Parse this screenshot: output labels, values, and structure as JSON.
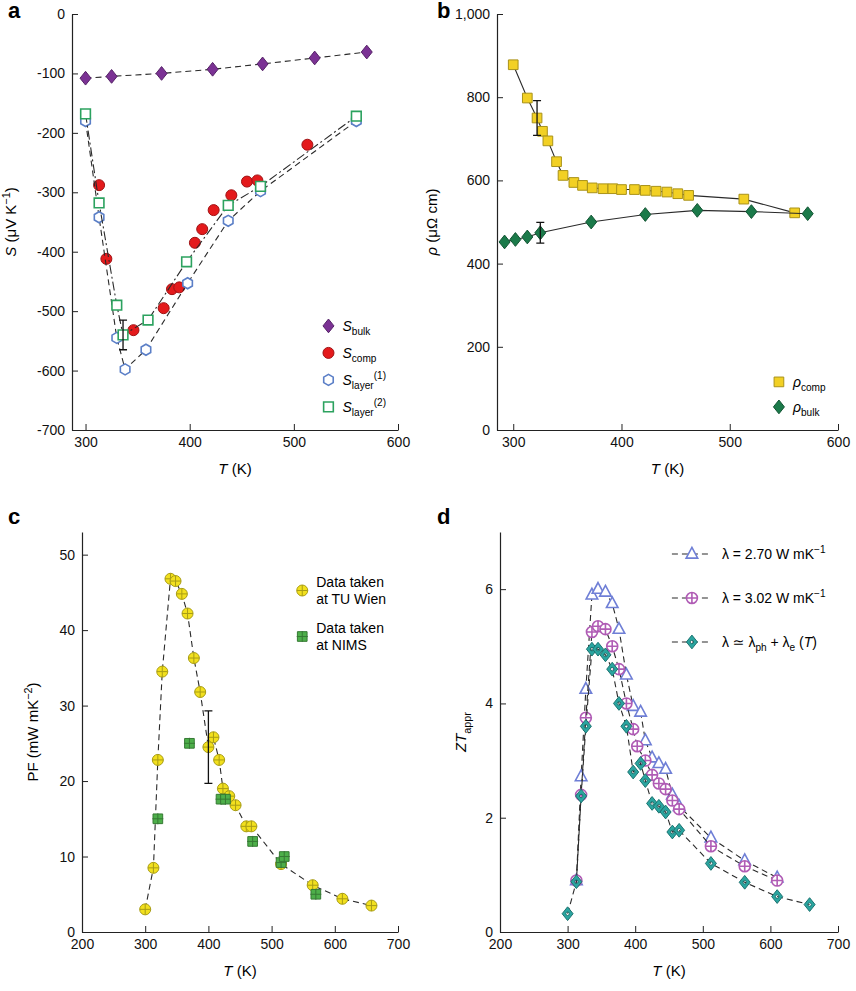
{
  "chart_data": [
    {
      "type": "line",
      "title": "a",
      "x_label": [
        {
          "i": "T"
        },
        {
          "text": " (K)"
        }
      ],
      "y_label": [
        {
          "i": "S"
        },
        {
          "text": " (μV K"
        },
        {
          "sup": "−1"
        },
        {
          "text": ")"
        }
      ],
      "xlim": [
        287,
        600
      ],
      "xticks": [
        300,
        400,
        500,
        600
      ],
      "ylim": [
        -700,
        0
      ],
      "yticks": [
        -700,
        -600,
        -500,
        -400,
        -300,
        -200,
        -100,
        0
      ],
      "legend": "lower right",
      "series": [
        {
          "name": [
            {
              "i": "S"
            },
            {
              "sub": "bulk"
            }
          ],
          "color": "#7b3294",
          "marker": "diamond",
          "line_style": "dashed",
          "x": [
            300,
            325,
            373,
            422,
            470,
            520,
            570
          ],
          "values": [
            -108,
            -105,
            -100,
            -93,
            -84,
            -74,
            -64
          ]
        },
        {
          "name": [
            {
              "i": "S"
            },
            {
              "sub": "comp"
            }
          ],
          "color": "#e41a1c",
          "marker": "circle",
          "line_style": "none",
          "x": [
            313,
            320,
            346,
            375,
            383,
            390,
            405,
            412,
            423,
            440,
            455,
            465,
            513
          ],
          "values": [
            -288,
            -412,
            -532,
            -495,
            -463,
            -460,
            -385,
            -362,
            -330,
            -305,
            -282,
            -280,
            -220
          ]
        },
        {
          "name": [
            {
              "i": "S"
            },
            {
              "sub": "layer"
            },
            {
              "sup": "(1)"
            }
          ],
          "color": "#5b7fc7",
          "marker": "open hexagon",
          "line_style": "dashed",
          "x": [
            300,
            313,
            330,
            338,
            358,
            398,
            437,
            468,
            560
          ],
          "values": [
            -180,
            -342,
            -545,
            -598,
            -565,
            -453,
            -348,
            -298,
            -180
          ]
        },
        {
          "name": [
            {
              "i": "S"
            },
            {
              "sub": "layer"
            },
            {
              "sup": "(2)"
            }
          ],
          "color": "#2ca25f",
          "marker": "open square",
          "line_style": "dashdot",
          "x": [
            300,
            313,
            330,
            336,
            360,
            397,
            437,
            468,
            560
          ],
          "values": [
            -168,
            -318,
            -490,
            -540,
            -515,
            -417,
            -322,
            -290,
            -172
          ],
          "errors": [
            null,
            null,
            null,
            25,
            null,
            null,
            null,
            null,
            null
          ]
        }
      ]
    },
    {
      "type": "line",
      "title": "b",
      "x_label": [
        {
          "i": "T"
        },
        {
          "text": " (K)"
        }
      ],
      "y_label": [
        {
          "i": "ρ"
        },
        {
          "text": " (μΩ cm)"
        }
      ],
      "xlim": [
        285,
        600
      ],
      "xticks": [
        300,
        400,
        500,
        600
      ],
      "ylim": [
        0,
        1000
      ],
      "yticks": [
        0,
        200,
        400,
        600,
        800,
        {
          "value": 1000,
          "label": "1,000"
        }
      ],
      "legend": "lower right",
      "series": [
        {
          "name": [
            {
              "i": "ρ"
            },
            {
              "sub": "comp"
            }
          ],
          "color": "#f2d024",
          "marker": "square",
          "line_style": "solid",
          "x": [
            300,
            313,
            322,
            327,
            332,
            340,
            346,
            356,
            364,
            373,
            383,
            392,
            400,
            412,
            422,
            432,
            442,
            452,
            462,
            513,
            560
          ],
          "values": [
            878,
            798,
            750,
            718,
            695,
            645,
            612,
            595,
            588,
            582,
            580,
            580,
            578,
            578,
            576,
            574,
            572,
            568,
            564,
            555,
            522
          ],
          "errors": [
            null,
            null,
            42,
            null,
            null,
            null,
            null,
            null,
            null,
            null,
            null,
            null,
            null,
            null,
            null,
            null,
            null,
            null,
            null,
            null,
            null
          ]
        },
        {
          "name": [
            {
              "i": "ρ"
            },
            {
              "sub": "bulk"
            }
          ],
          "color": "#1b7a4a",
          "marker": "diamond",
          "line_style": "solid",
          "x": [
            292,
            302,
            313,
            325,
            372,
            422,
            470,
            520,
            572
          ],
          "values": [
            452,
            458,
            464,
            474,
            500,
            518,
            528,
            525,
            520
          ],
          "errors": [
            null,
            null,
            null,
            25,
            null,
            null,
            null,
            null,
            null
          ]
        }
      ]
    },
    {
      "type": "line",
      "title": "c",
      "x_label": [
        {
          "i": "T"
        },
        {
          "text": " (K)"
        }
      ],
      "y_label": [
        {
          "text": "PF (mW mK"
        },
        {
          "sup": "−2"
        },
        {
          "text": ")"
        }
      ],
      "xlim": [
        200,
        700
      ],
      "xticks": [
        200,
        300,
        400,
        500,
        600,
        700
      ],
      "ylim": [
        0,
        53
      ],
      "yticks": [
        0,
        10,
        20,
        30,
        40,
        50
      ],
      "legend": "upper right",
      "series": [
        {
          "name": "Data taken at TU Wien",
          "color": "#f2e01e",
          "marker": "circle cross",
          "line_style": "dashed",
          "x": [
            300,
            313,
            320,
            327,
            340,
            348,
            358,
            367,
            377,
            387,
            400,
            408,
            417,
            423,
            433,
            443,
            460,
            468,
            515,
            565,
            612,
            658
          ],
          "values": [
            3,
            8.5,
            22.8,
            34.5,
            46.8,
            46.5,
            44.8,
            42.2,
            36.3,
            31.8,
            24.5,
            25.8,
            22.8,
            19,
            18,
            16.8,
            14,
            14,
            9,
            6.2,
            4.4,
            3.5
          ],
          "errors": [
            null,
            null,
            null,
            null,
            null,
            null,
            null,
            null,
            null,
            null,
            4.8,
            null,
            null,
            null,
            null,
            null,
            null,
            null,
            null,
            null,
            null,
            null
          ]
        },
        {
          "name": "Data taken at NIMS",
          "color": "#4daf4a",
          "marker": "square cross",
          "line_style": "none",
          "x": [
            320,
            370,
            420,
            427,
            470,
            515,
            520,
            570
          ],
          "values": [
            15,
            25,
            17.6,
            17.6,
            12,
            9.2,
            10,
            5
          ]
        }
      ]
    },
    {
      "type": "line",
      "title": "d",
      "x_label": [
        {
          "i": "T"
        },
        {
          "text": " (K)"
        }
      ],
      "y_label": [
        {
          "i": "ZT"
        },
        {
          "sub": "appr"
        }
      ],
      "xlim": [
        200,
        700
      ],
      "xticks": [
        200,
        300,
        400,
        500,
        600,
        700
      ],
      "ylim": [
        0,
        7
      ],
      "yticks": [
        0,
        2,
        4,
        6
      ],
      "legend": "upper right",
      "series": [
        {
          "name": [
            {
              "text": "λ = 2.70  W mK"
            },
            {
              "sup": "−1"
            }
          ],
          "color": "#6f7fd6",
          "marker": "open triangle",
          "line_style": "dashed",
          "x": [
            313,
            320,
            327,
            336,
            345,
            356,
            366,
            376,
            387,
            397,
            408,
            415,
            425,
            435,
            445,
            455,
            465,
            512,
            562,
            610
          ],
          "values": [
            0.9,
            2.72,
            4.25,
            5.9,
            6.0,
            5.95,
            5.75,
            5.3,
            4.5,
            3.95,
            3.85,
            3.35,
            3.05,
            2.95,
            2.85,
            2.4,
            2.2,
            1.65,
            1.25,
            0.95
          ]
        },
        {
          "name": [
            {
              "text": "λ = 3.02  W mK"
            },
            {
              "sup": "−1"
            }
          ],
          "color": "#b05cb5",
          "marker": "open circle cross",
          "line_style": "dashed",
          "x": [
            313,
            320,
            327,
            336,
            345,
            356,
            366,
            376,
            387,
            397,
            403,
            415,
            425,
            435,
            445,
            455,
            465,
            512,
            562,
            610
          ],
          "values": [
            0.9,
            2.4,
            3.75,
            5.25,
            5.35,
            5.3,
            5.0,
            4.6,
            4.0,
            3.55,
            3.25,
            3.0,
            2.75,
            2.6,
            2.5,
            2.3,
            2.15,
            1.5,
            1.15,
            0.9
          ]
        },
        {
          "name": [
            {
              "text": "λ ≃ λ"
            },
            {
              "sub": "ph"
            },
            {
              "text": " + λ"
            },
            {
              "sub": "e"
            },
            {
              "text": " ("
            },
            {
              "i": "T"
            },
            {
              "text": ")"
            }
          ],
          "color": "#2aa5a0",
          "marker": "diamond dot",
          "line_style": "dashed",
          "x": [
            300,
            313,
            320,
            327,
            336,
            345,
            356,
            366,
            376,
            387,
            397,
            408,
            415,
            425,
            435,
            445,
            455,
            465,
            512,
            562,
            610,
            658
          ],
          "values": [
            0.32,
            0.88,
            2.38,
            3.6,
            4.95,
            4.95,
            4.85,
            4.6,
            4.0,
            3.6,
            2.8,
            2.95,
            2.65,
            2.25,
            2.2,
            2.1,
            1.75,
            1.78,
            1.2,
            0.87,
            0.62,
            0.48
          ]
        }
      ]
    }
  ]
}
